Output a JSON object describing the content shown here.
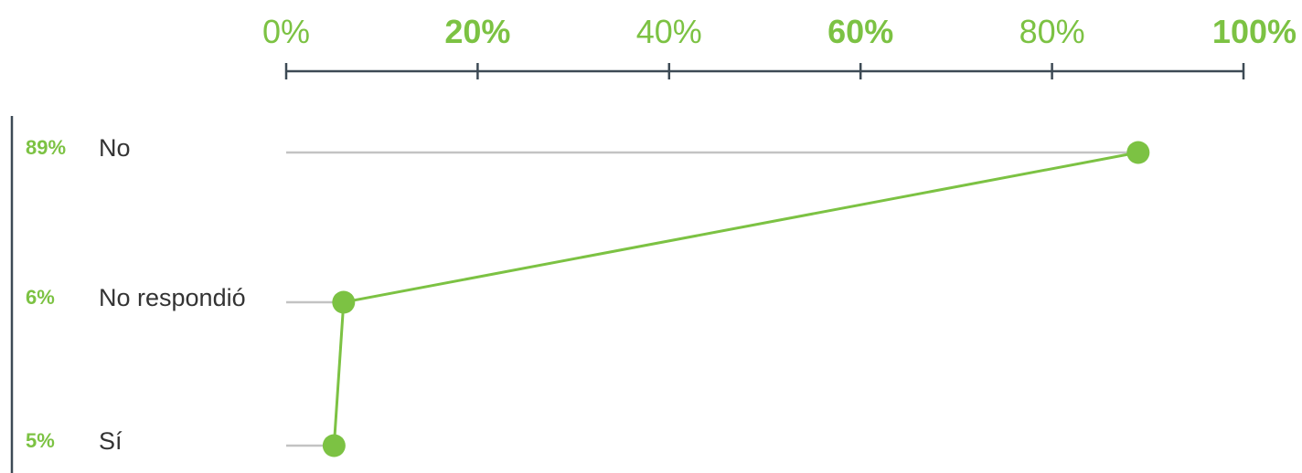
{
  "chart_data": {
    "type": "line",
    "orientation": "horizontal",
    "title": "",
    "xlabel": "",
    "ylabel": "",
    "xlim": [
      0,
      100
    ],
    "x_ticks": [
      {
        "value": 0,
        "label": "0%",
        "bold": false
      },
      {
        "value": 20,
        "label": "20%",
        "bold": true
      },
      {
        "value": 40,
        "label": "40%",
        "bold": false
      },
      {
        "value": 60,
        "label": "60%",
        "bold": true
      },
      {
        "value": 80,
        "label": "80%",
        "bold": false
      },
      {
        "value": 100,
        "label": "100%",
        "bold": true
      }
    ],
    "categories": [
      "No",
      "No respondió",
      "Sí"
    ],
    "values": [
      89,
      6,
      5
    ],
    "value_labels": [
      "89%",
      "6%",
      "5%"
    ],
    "grid": false,
    "colors": {
      "accent": "#7cc243",
      "axis": "#3d4a55",
      "stem": "#c3c3c3",
      "category_text": "#333333"
    }
  }
}
